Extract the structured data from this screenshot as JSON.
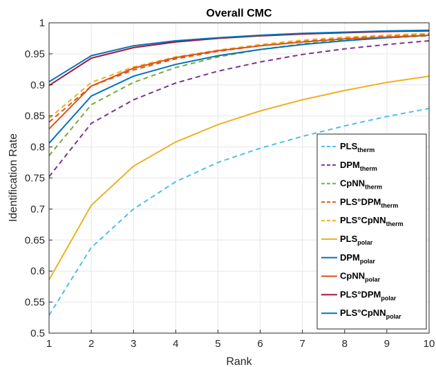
{
  "chart_data": {
    "type": "line",
    "title": "Overall CMC",
    "xlabel": "Rank",
    "ylabel": "Identification Rate",
    "xlim": [
      1,
      10
    ],
    "ylim": [
      0.5,
      1
    ],
    "x": [
      1,
      2,
      3,
      4,
      5,
      6,
      7,
      8,
      9,
      10
    ],
    "x_ticks": [
      "1",
      "2",
      "3",
      "4",
      "5",
      "6",
      "7",
      "8",
      "9",
      "10"
    ],
    "y_ticks": [
      "0.5",
      "0.55",
      "0.6",
      "0.65",
      "0.7",
      "0.75",
      "0.8",
      "0.85",
      "0.9",
      "0.95",
      "1"
    ],
    "grid": true,
    "legend_position": "bottom-right",
    "series": [
      {
        "name": "PLS",
        "sub": "therm",
        "style": "dashed",
        "color": "#4dbeee",
        "values": [
          0.529,
          0.638,
          0.7,
          0.744,
          0.775,
          0.798,
          0.817,
          0.834,
          0.849,
          0.862
        ]
      },
      {
        "name": "DPM",
        "sub": "therm",
        "style": "dashed",
        "color": "#7e2f8e",
        "values": [
          0.752,
          0.838,
          0.876,
          0.903,
          0.922,
          0.937,
          0.949,
          0.958,
          0.965,
          0.971
        ]
      },
      {
        "name": "CpNN",
        "sub": "therm",
        "style": "dashed",
        "color": "#77ac30",
        "values": [
          0.786,
          0.868,
          0.904,
          0.928,
          0.945,
          0.957,
          0.966,
          0.972,
          0.976,
          0.979
        ]
      },
      {
        "name": "PLS°DPM",
        "sub": "therm",
        "style": "dashed",
        "color": "#d95319",
        "values": [
          0.84,
          0.898,
          0.924,
          0.942,
          0.954,
          0.963,
          0.97,
          0.975,
          0.979,
          0.982
        ]
      },
      {
        "name": "PLS°CpNN",
        "sub": "therm",
        "style": "dashed",
        "color": "#edb120",
        "values": [
          0.846,
          0.904,
          0.929,
          0.945,
          0.956,
          0.965,
          0.972,
          0.977,
          0.98,
          0.983
        ]
      },
      {
        "name": "PLS",
        "sub": "polar",
        "style": "solid",
        "color": "#edb120",
        "values": [
          0.586,
          0.706,
          0.769,
          0.808,
          0.836,
          0.858,
          0.876,
          0.891,
          0.904,
          0.914
        ]
      },
      {
        "name": "DPM",
        "sub": "polar",
        "style": "solid",
        "color": "#0072bd",
        "values": [
          0.806,
          0.882,
          0.914,
          0.933,
          0.947,
          0.957,
          0.965,
          0.971,
          0.976,
          0.98
        ]
      },
      {
        "name": "CpNN",
        "sub": "polar",
        "style": "solid",
        "color": "#d95319",
        "values": [
          0.829,
          0.898,
          0.927,
          0.944,
          0.955,
          0.963,
          0.969,
          0.974,
          0.977,
          0.98
        ]
      },
      {
        "name": "PLS°DPM",
        "sub": "polar",
        "style": "solid",
        "color": "#a2142f",
        "values": [
          0.899,
          0.943,
          0.96,
          0.969,
          0.975,
          0.979,
          0.982,
          0.984,
          0.986,
          0.987
        ]
      },
      {
        "name": "PLS°CpNN",
        "sub": "polar",
        "style": "solid",
        "color": "#0072bd",
        "values": [
          0.905,
          0.947,
          0.963,
          0.971,
          0.976,
          0.98,
          0.983,
          0.985,
          0.987,
          0.988
        ]
      }
    ]
  }
}
